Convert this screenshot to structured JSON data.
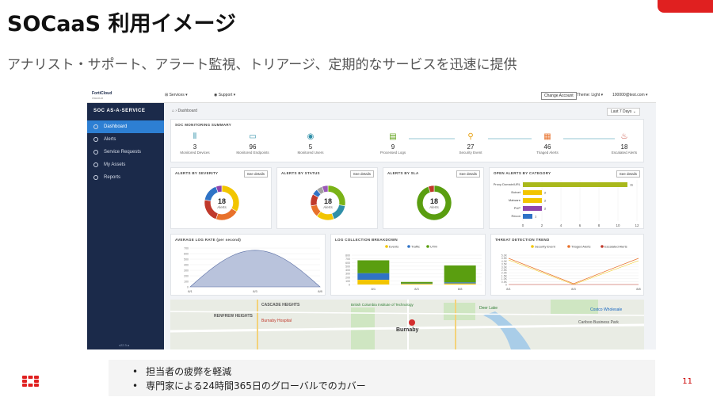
{
  "slide": {
    "title": "SOCaaS 利用イメージ",
    "subtitle": "アナリスト・サポート、アラート監視、トリアージ、定期的なサービスを迅速に提供",
    "bullets": [
      "担当者の疲弊を軽減",
      "専門家による24時間365日のグローバルでのカバー"
    ],
    "page_number": "11"
  },
  "app": {
    "logo": "FortiCloud",
    "logo_sub": "PREMIUM",
    "menu_services": "Services",
    "menu_support": "Support",
    "change_account": "Change Account",
    "theme": "Theme: Light",
    "user": "100000@test.com"
  },
  "sidebar": {
    "title": "SOC AS-A-SERVICE",
    "items": [
      {
        "label": "Dashboard",
        "icon": "dashboard-icon"
      },
      {
        "label": "Alerts",
        "icon": "bell-icon"
      },
      {
        "label": "Service Requests",
        "icon": "request-icon"
      },
      {
        "label": "My Assets",
        "icon": "assets-icon"
      },
      {
        "label": "Reports",
        "icon": "report-icon"
      }
    ],
    "version": "v22.3.a"
  },
  "main": {
    "breadcrumb": "⌂ › Dashboard",
    "range": "Last 7 Days ⌄",
    "see_details": "See details",
    "summary": {
      "title": "SOC MONITORING SUMMARY",
      "items": [
        {
          "value": "3",
          "label": "Monitored Devices"
        },
        {
          "value": "96",
          "label": "Monitored Endpoints"
        },
        {
          "value": "5",
          "label": "Monitored Users"
        },
        {
          "value": "9",
          "label": "Processed Logs"
        },
        {
          "value": "27",
          "label": "Security Event"
        },
        {
          "value": "46",
          "label": "Triaged Alerts"
        },
        {
          "value": "18",
          "label": "Escalated Alerts"
        }
      ]
    },
    "severity": {
      "title": "ALERTS BY SEVERITY",
      "count": "18",
      "unit": "Alerts"
    },
    "status": {
      "title": "ALERTS BY STATUS",
      "count": "18",
      "unit": "Alerts"
    },
    "sla": {
      "title": "ALERTS BY SLA",
      "count": "18",
      "unit": "Alerts"
    },
    "category": {
      "title": "OPEN ALERTS BY CATEGORY"
    },
    "lograte": {
      "title": "AVERAGE LOG RATE (per second)"
    },
    "logcollect": {
      "title": "LOG COLLECTION BREAKDOWN"
    },
    "threat": {
      "title": "THREAT DETECTION TREND"
    },
    "map_labels": [
      "RENFREW HEIGHTS",
      "CASCADE HEIGHTS",
      "Burnaby Hospital",
      "British Columbia Institute of Technology",
      "Burnaby",
      "Costco Wholesale",
      "Cariboo Business Park",
      "Deer Lake"
    ]
  },
  "chart_data": [
    {
      "type": "pie",
      "title": "ALERTS BY SEVERITY",
      "values": [
        6,
        4,
        4,
        3,
        1
      ],
      "colors": [
        "#f2c500",
        "#e8712b",
        "#c0392b",
        "#2f73c6",
        "#8e44ad"
      ]
    },
    {
      "type": "pie",
      "title": "ALERTS BY STATUS",
      "values": [
        5,
        3,
        3,
        2,
        2,
        1,
        1,
        1
      ],
      "colors": [
        "#7ab317",
        "#2f8fa8",
        "#f2c500",
        "#e8712b",
        "#c0392b",
        "#2f73c6",
        "#a0a0a0",
        "#9b59b6"
      ]
    },
    {
      "type": "pie",
      "title": "ALERTS BY SLA",
      "values": [
        17,
        1
      ],
      "colors": [
        "#5a9e10",
        "#c0392b"
      ]
    },
    {
      "type": "bar",
      "title": "OPEN ALERTS BY CATEGORY",
      "categories": [
        "Proxy Domain/URL",
        "Botnet",
        "Malware",
        "PUP",
        "Recon"
      ],
      "values": [
        11,
        2,
        2,
        2,
        1
      ],
      "colors": [
        "#a9b81b",
        "#f2c500",
        "#f2c500",
        "#8e44ad",
        "#2f73c6"
      ],
      "xlim": [
        0,
        12
      ],
      "xticks": [
        "0",
        "2",
        "4",
        "6",
        "8",
        "10",
        "12"
      ]
    },
    {
      "type": "area",
      "title": "AVERAGE LOG RATE (per second)",
      "x": [
        "8/1",
        "8/3",
        "8/8"
      ],
      "ylim": [
        0,
        700
      ],
      "yticks": [
        "0",
        "100",
        "200",
        "300",
        "400",
        "500",
        "600",
        "700"
      ],
      "peak": 660
    },
    {
      "type": "bar",
      "title": "LOG COLLECTION BREAKDOWN",
      "categories": [
        "8/1",
        "8/3",
        "8/8"
      ],
      "series": [
        {
          "name": "Events",
          "values": [
            130,
            20,
            30
          ],
          "color": "#f2c500"
        },
        {
          "name": "Traffic",
          "values": [
            180,
            10,
            30
          ],
          "color": "#2f73c6"
        },
        {
          "name": "UTM",
          "values": [
            350,
            40,
            460
          ],
          "color": "#5a9e10"
        }
      ],
      "yticks": [
        "0",
        "100",
        "200",
        "300",
        "400",
        "500",
        "600",
        "700",
        "800"
      ]
    },
    {
      "type": "line",
      "title": "THREAT DETECTION TREND",
      "x": [
        "8/1",
        "8/3",
        "8/8"
      ],
      "series": [
        {
          "name": "Security Event",
          "color": "#f2c500"
        },
        {
          "name": "Triaged Alerts",
          "color": "#e8712b"
        },
        {
          "name": "Escalated Alerts",
          "color": "#c0392b"
        }
      ],
      "yticks": [
        "0",
        "0.5K",
        "1.0K",
        "1.5K",
        "2.0K",
        "2.5K",
        "3.0K",
        "3.5K",
        "4.0K",
        "4.5K",
        "5.0K"
      ]
    }
  ]
}
